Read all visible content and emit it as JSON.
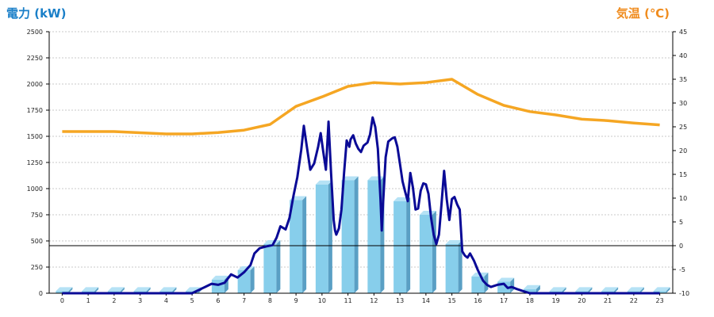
{
  "colors": {
    "power_title": "#1a7fc8",
    "temp_title": "#f08c1e",
    "bar_front": "#87ceeb",
    "bar_side": "#5a9fc4",
    "bar_top": "#b5e2f5",
    "power_line": "#0a0a96",
    "temp_line": "#f5a623",
    "grid": "#c8c8c8",
    "zero_line": "#000000"
  },
  "chart_data": {
    "type": "bar",
    "left_axis_title": "電力 (kW)",
    "right_axis_title": "気温 (℃)",
    "categories": [
      "0",
      "1",
      "2",
      "3",
      "4",
      "5",
      "6",
      "7",
      "8",
      "9",
      "10",
      "11",
      "12",
      "13",
      "14",
      "15",
      "16",
      "17",
      "18",
      "19",
      "20",
      "21",
      "22",
      "23"
    ],
    "left_ylim": [
      0,
      2500
    ],
    "left_ticks": [
      "0",
      "250",
      "500",
      "750",
      "1000",
      "1250",
      "1500",
      "1750",
      "2000",
      "2250",
      "2500"
    ],
    "right_ylim": [
      -10,
      45
    ],
    "right_ticks": [
      "-10",
      "-5",
      "0",
      "5",
      "10",
      "15",
      "20",
      "25",
      "30",
      "35",
      "40",
      "45"
    ],
    "grid": true,
    "series": [
      {
        "kind": "bar",
        "axis": "left",
        "values": [
          20,
          20,
          20,
          20,
          20,
          20,
          130,
          220,
          470,
          890,
          1040,
          1080,
          1080,
          880,
          750,
          470,
          160,
          110,
          40,
          20,
          20,
          20,
          20,
          20
        ]
      },
      {
        "kind": "line",
        "axis": "left",
        "points": [
          [
            0,
            0
          ],
          [
            5,
            0
          ],
          [
            5.5,
            60
          ],
          [
            5.75,
            90
          ],
          [
            6,
            80
          ],
          [
            6.25,
            100
          ],
          [
            6.5,
            180
          ],
          [
            6.75,
            150
          ],
          [
            7,
            200
          ],
          [
            7.25,
            270
          ],
          [
            7.4,
            380
          ],
          [
            7.6,
            430
          ],
          [
            7.9,
            450
          ],
          [
            8.1,
            460
          ],
          [
            8.25,
            530
          ],
          [
            8.4,
            640
          ],
          [
            8.6,
            610
          ],
          [
            8.75,
            720
          ],
          [
            8.9,
            930
          ],
          [
            9.05,
            1110
          ],
          [
            9.2,
            1370
          ],
          [
            9.3,
            1600
          ],
          [
            9.4,
            1430
          ],
          [
            9.55,
            1180
          ],
          [
            9.7,
            1240
          ],
          [
            9.85,
            1400
          ],
          [
            9.95,
            1530
          ],
          [
            10.05,
            1350
          ],
          [
            10.15,
            1180
          ],
          [
            10.25,
            1640
          ],
          [
            10.35,
            1150
          ],
          [
            10.45,
            700
          ],
          [
            10.5,
            600
          ],
          [
            10.55,
            560
          ],
          [
            10.65,
            620
          ],
          [
            10.75,
            800
          ],
          [
            10.85,
            1150
          ],
          [
            10.95,
            1460
          ],
          [
            11.05,
            1400
          ],
          [
            11.1,
            1470
          ],
          [
            11.2,
            1510
          ],
          [
            11.3,
            1430
          ],
          [
            11.4,
            1380
          ],
          [
            11.5,
            1350
          ],
          [
            11.6,
            1410
          ],
          [
            11.75,
            1440
          ],
          [
            11.85,
            1520
          ],
          [
            11.95,
            1680
          ],
          [
            12.05,
            1590
          ],
          [
            12.15,
            1380
          ],
          [
            12.25,
            900
          ],
          [
            12.3,
            600
          ],
          [
            12.35,
            850
          ],
          [
            12.45,
            1300
          ],
          [
            12.55,
            1450
          ],
          [
            12.7,
            1480
          ],
          [
            12.8,
            1490
          ],
          [
            12.9,
            1400
          ],
          [
            13.0,
            1240
          ],
          [
            13.1,
            1070
          ],
          [
            13.2,
            970
          ],
          [
            13.3,
            880
          ],
          [
            13.4,
            1150
          ],
          [
            13.5,
            1010
          ],
          [
            13.6,
            800
          ],
          [
            13.7,
            810
          ],
          [
            13.8,
            980
          ],
          [
            13.9,
            1050
          ],
          [
            14.0,
            1040
          ],
          [
            14.1,
            950
          ],
          [
            14.2,
            720
          ],
          [
            14.3,
            560
          ],
          [
            14.4,
            470
          ],
          [
            14.5,
            560
          ],
          [
            14.6,
            850
          ],
          [
            14.7,
            1170
          ],
          [
            14.8,
            900
          ],
          [
            14.9,
            700
          ],
          [
            15.0,
            900
          ],
          [
            15.1,
            920
          ],
          [
            15.2,
            850
          ],
          [
            15.3,
            800
          ],
          [
            15.4,
            400
          ],
          [
            15.5,
            360
          ],
          [
            15.6,
            340
          ],
          [
            15.7,
            380
          ],
          [
            15.85,
            310
          ],
          [
            16.0,
            220
          ],
          [
            16.2,
            120
          ],
          [
            16.35,
            80
          ],
          [
            16.5,
            60
          ],
          [
            16.75,
            80
          ],
          [
            17.0,
            90
          ],
          [
            17.15,
            50
          ],
          [
            17.3,
            60
          ],
          [
            17.5,
            40
          ],
          [
            17.75,
            20
          ],
          [
            18.0,
            0
          ],
          [
            23,
            0
          ]
        ]
      },
      {
        "kind": "line",
        "axis": "right",
        "points": [
          [
            0,
            24
          ],
          [
            2,
            24
          ],
          [
            4,
            23.5
          ],
          [
            5,
            23.5
          ],
          [
            6,
            23.8
          ],
          [
            7,
            24.3
          ],
          [
            8,
            25.5
          ],
          [
            9,
            29.3
          ],
          [
            10,
            31.3
          ],
          [
            11,
            33.5
          ],
          [
            12,
            34.3
          ],
          [
            13,
            34.0
          ],
          [
            14,
            34.3
          ],
          [
            15,
            35.0
          ],
          [
            16,
            31.8
          ],
          [
            17,
            29.5
          ],
          [
            18,
            28.2
          ],
          [
            19,
            27.5
          ],
          [
            20,
            26.6
          ],
          [
            21,
            26.3
          ],
          [
            22,
            25.8
          ],
          [
            23,
            25.4
          ]
        ]
      }
    ]
  }
}
